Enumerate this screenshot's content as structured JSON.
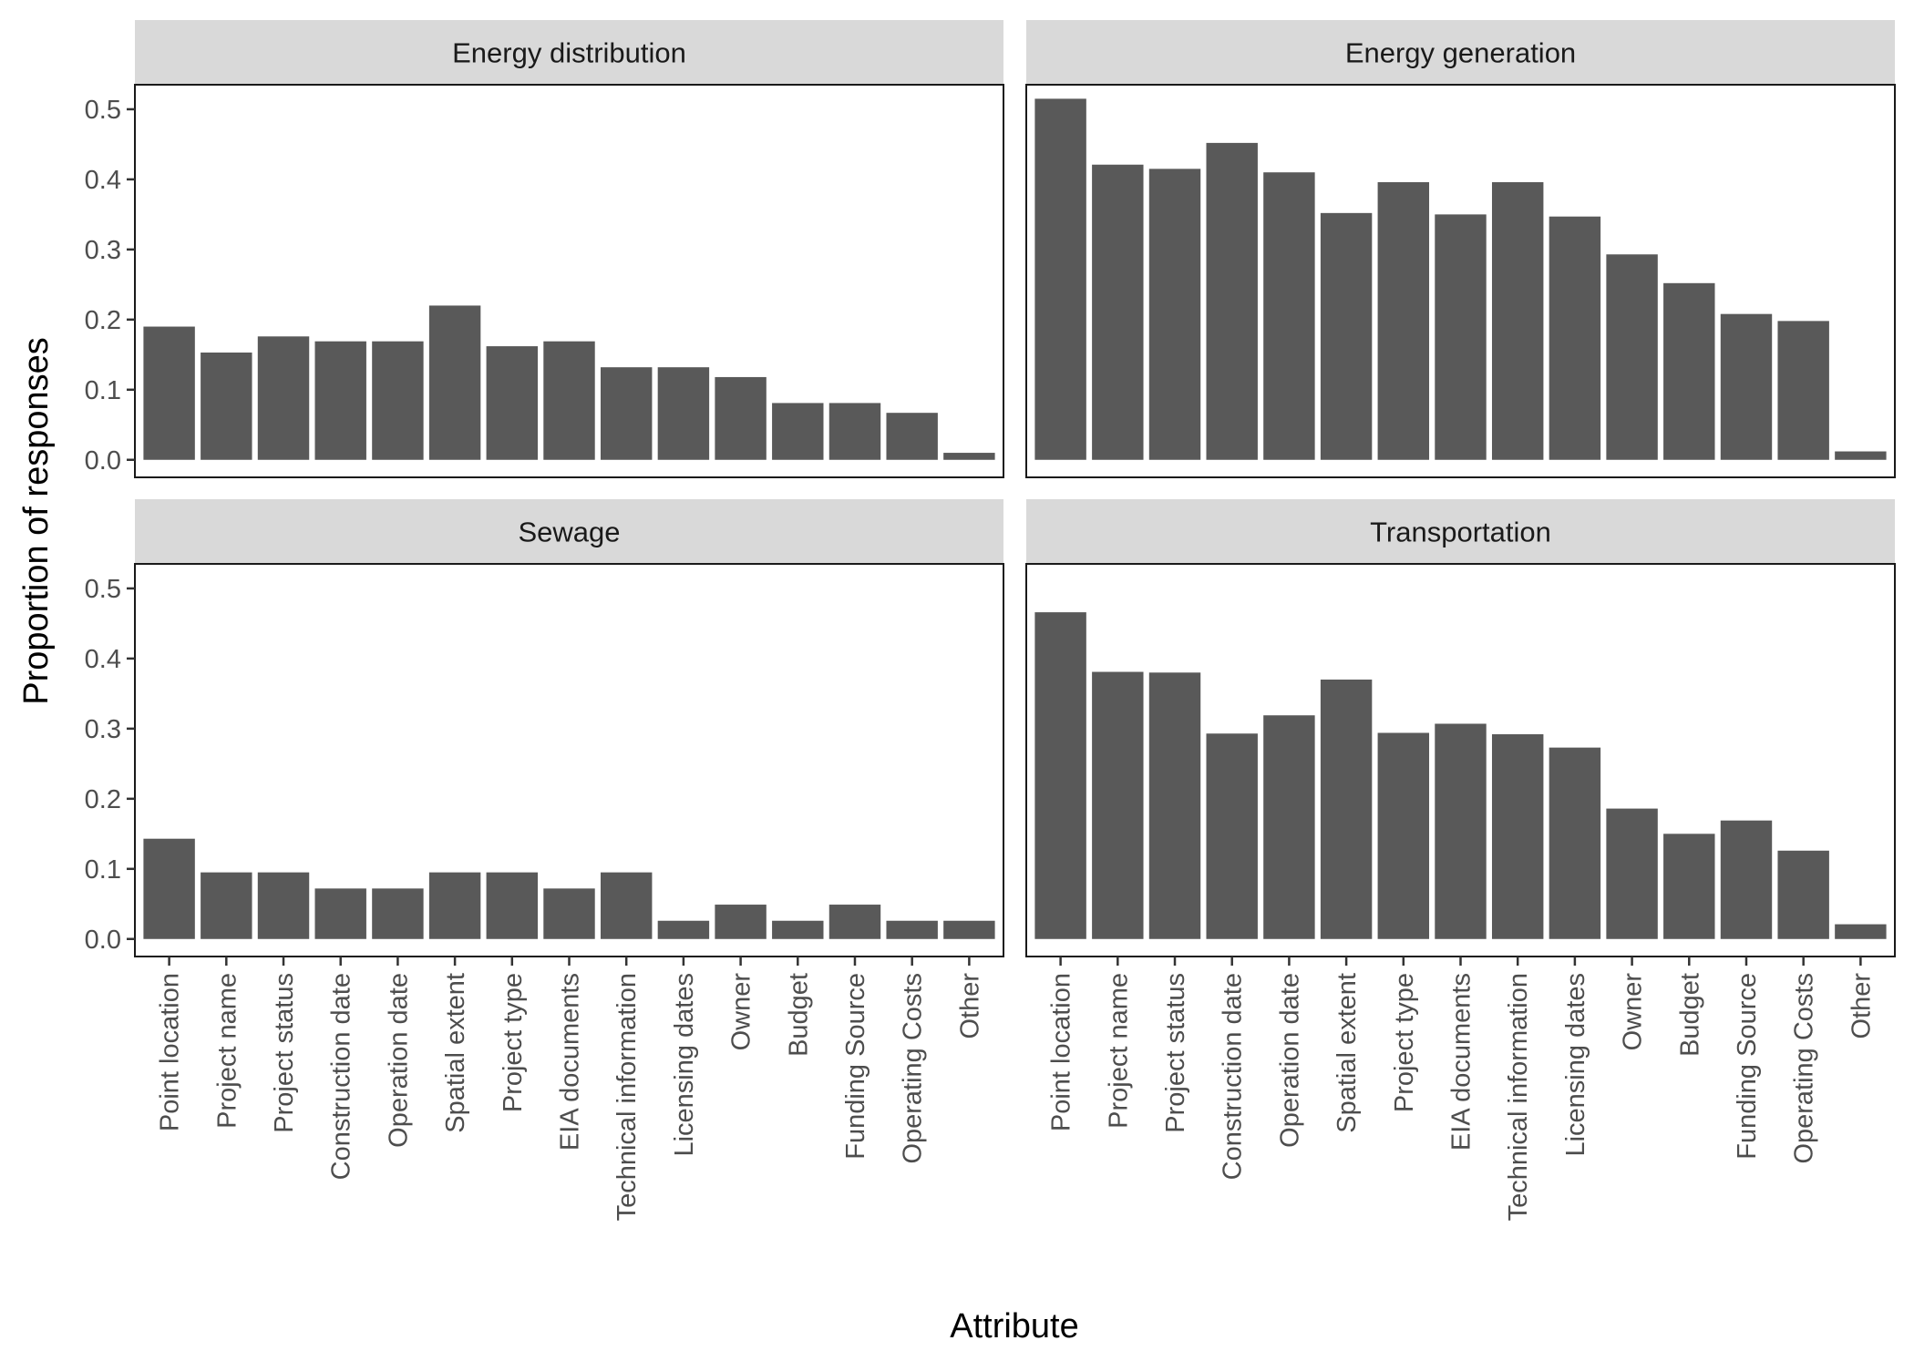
{
  "chart_data": {
    "type": "bar",
    "xlabel": "Attribute",
    "ylabel": "Proportion of responses",
    "ylim": [
      -0.025,
      0.535
    ],
    "yticks": [
      "0.0",
      "0.1",
      "0.2",
      "0.3",
      "0.4",
      "0.5"
    ],
    "ytick_values": [
      0,
      0.1,
      0.2,
      0.3,
      0.4,
      0.5
    ],
    "categories": [
      "Point location",
      "Project name",
      "Project status",
      "Construction date",
      "Operation date",
      "Spatial extent",
      "Project type",
      "EIA documents",
      "Technical information",
      "Licensing dates",
      "Owner",
      "Budget",
      "Funding Source",
      "Operating Costs",
      "Other"
    ],
    "bar_color": "#595959",
    "strip_color": "#d9d9d9",
    "facets": [
      {
        "name": "Energy distribution",
        "values": [
          0.19,
          0.153,
          0.176,
          0.169,
          0.169,
          0.22,
          0.162,
          0.169,
          0.132,
          0.132,
          0.118,
          0.081,
          0.081,
          0.067,
          0.01
        ]
      },
      {
        "name": "Energy generation",
        "values": [
          0.515,
          0.421,
          0.415,
          0.452,
          0.41,
          0.352,
          0.396,
          0.35,
          0.396,
          0.347,
          0.293,
          0.252,
          0.208,
          0.198,
          0.012
        ]
      },
      {
        "name": "Sewage",
        "values": [
          0.143,
          0.095,
          0.095,
          0.072,
          0.072,
          0.095,
          0.095,
          0.072,
          0.095,
          0.026,
          0.049,
          0.026,
          0.049,
          0.026,
          0.026
        ]
      },
      {
        "name": "Transportation",
        "values": [
          0.466,
          0.381,
          0.38,
          0.293,
          0.319,
          0.37,
          0.294,
          0.307,
          0.292,
          0.273,
          0.186,
          0.15,
          0.169,
          0.126,
          0.021
        ]
      }
    ]
  }
}
